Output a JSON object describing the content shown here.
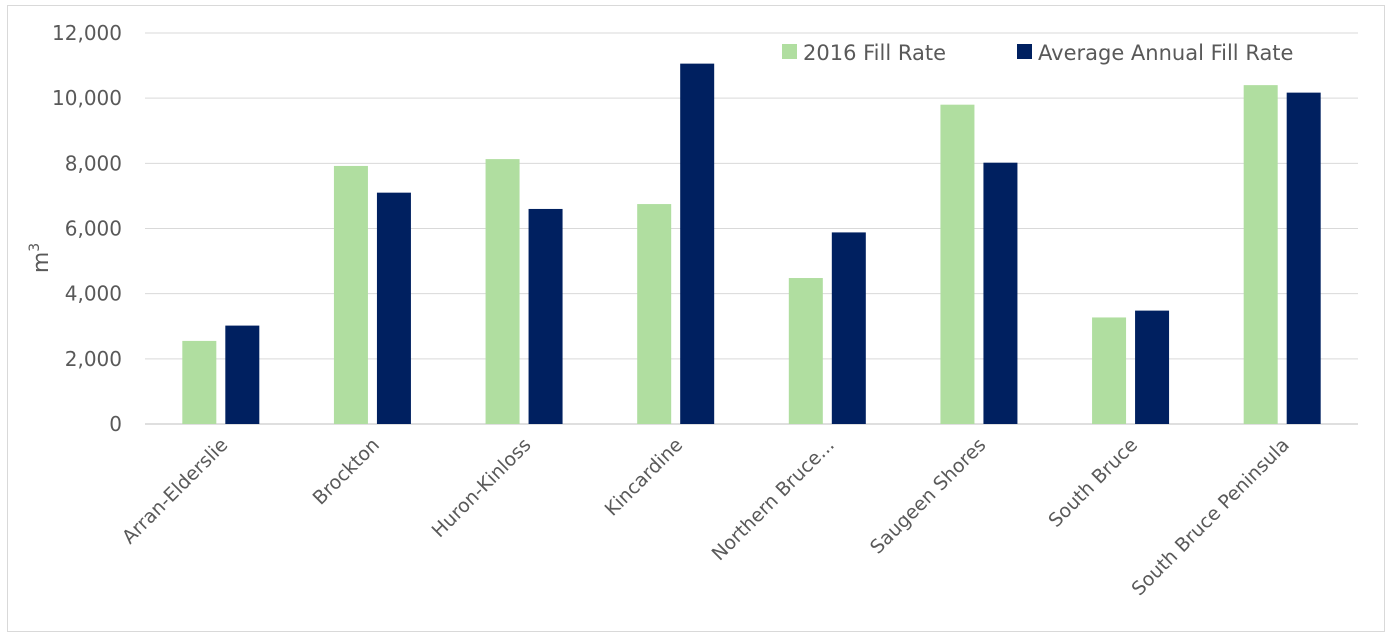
{
  "chart_data": {
    "type": "bar",
    "title": "",
    "xlabel": "",
    "ylabel": "m",
    "ylabel_superscript": "3",
    "ylim": [
      0,
      12000
    ],
    "yticks": [
      "0",
      "2,000",
      "4,000",
      "6,000",
      "8,000",
      "10,000",
      "12,000"
    ],
    "grid": true,
    "legend_position": "top-right",
    "categories": [
      "Arran-Elderslie",
      "Brockton",
      "Huron-Kinloss",
      "Kincardine",
      "Northern Bruce...",
      "Saugeen Shores",
      "South Bruce",
      "South Bruce Peninsula"
    ],
    "series": [
      {
        "name": "2016 Fill Rate",
        "color": "#b0dea0",
        "values": [
          2550,
          7920,
          8130,
          6750,
          4480,
          9800,
          3270,
          10400
        ]
      },
      {
        "name": "Average Annual Fill Rate",
        "color": "#002060",
        "values": [
          3020,
          7100,
          6600,
          11060,
          5880,
          8020,
          3480,
          10170
        ]
      }
    ]
  }
}
